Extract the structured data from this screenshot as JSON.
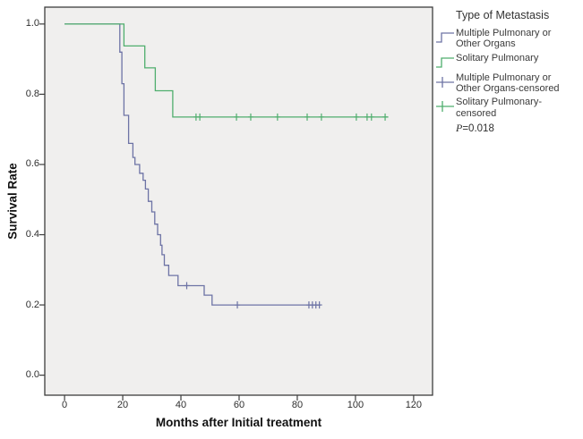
{
  "chart_data": {
    "type": "line",
    "subtype": "kaplan-meier-step-survival",
    "title": "",
    "xlabel": "Months after Initial treatment",
    "ylabel": "Survival Rate",
    "xticks": [
      0,
      20,
      40,
      60,
      80,
      100,
      120
    ],
    "yticks": [
      0.0,
      0.2,
      0.4,
      0.6,
      0.8,
      1.0
    ],
    "xlim": [
      -6.8,
      126.5
    ],
    "ylim": [
      -0.057,
      1.048
    ],
    "grid": false,
    "plot_bg": "#f0efee",
    "frame_color": "#3d3d3d",
    "legend_position": "right",
    "legend_title": "Type of Metastasis",
    "p_label": "P",
    "p_value": "=0.018",
    "series": [
      {
        "name": "Multiple Pulmonary or Other Organs",
        "color": "#6d73a5",
        "line_style": "step",
        "steps": [
          [
            0,
            1.0
          ],
          [
            19,
            0.92
          ],
          [
            19.7,
            0.83
          ],
          [
            20.4,
            0.74
          ],
          [
            22,
            0.66
          ],
          [
            23.5,
            0.62
          ],
          [
            24.2,
            0.6
          ],
          [
            25.8,
            0.575
          ],
          [
            27,
            0.555
          ],
          [
            27.8,
            0.53
          ],
          [
            28.8,
            0.495
          ],
          [
            30,
            0.465
          ],
          [
            31,
            0.43
          ],
          [
            32,
            0.4
          ],
          [
            33,
            0.37
          ],
          [
            33.5,
            0.343
          ],
          [
            34.3,
            0.313
          ],
          [
            35.8,
            0.284
          ],
          [
            39,
            0.255
          ],
          [
            48,
            0.228
          ],
          [
            50.7,
            0.2
          ],
          [
            88,
            0.2
          ]
        ],
        "censor_marks": [
          [
            42,
            0.255
          ],
          [
            59.4,
            0.2
          ],
          [
            84,
            0.2
          ],
          [
            85.2,
            0.2
          ],
          [
            86.4,
            0.2
          ],
          [
            87.6,
            0.2
          ]
        ]
      },
      {
        "name": "Solitary Pulmonary",
        "color": "#4fae6d",
        "line_style": "step",
        "steps": [
          [
            0,
            1.0
          ],
          [
            20.4,
            0.9375
          ],
          [
            27.6,
            0.875
          ],
          [
            31.2,
            0.81
          ],
          [
            37.2,
            0.735
          ],
          [
            111.3,
            0.735
          ]
        ],
        "censor_marks": [
          [
            45.2,
            0.735
          ],
          [
            46.5,
            0.735
          ],
          [
            59.1,
            0.735
          ],
          [
            64,
            0.735
          ],
          [
            73.2,
            0.735
          ],
          [
            83.4,
            0.735
          ],
          [
            88.3,
            0.735
          ],
          [
            100.3,
            0.735
          ],
          [
            104,
            0.735
          ],
          [
            105.5,
            0.735
          ],
          [
            110.2,
            0.735
          ]
        ]
      }
    ],
    "legend": [
      {
        "label": "Multiple Pulmonary or Other Organs",
        "glyph": "step",
        "color": "#6d73a5"
      },
      {
        "label": "Solitary Pulmonary",
        "glyph": "step",
        "color": "#4fae6d"
      },
      {
        "label": "Multiple Pulmonary or Other Organs-censored",
        "glyph": "plus",
        "color": "#6d73a5"
      },
      {
        "label": "Solitary Pulmonary-censored",
        "glyph": "plus",
        "color": "#4fae6d"
      }
    ]
  }
}
